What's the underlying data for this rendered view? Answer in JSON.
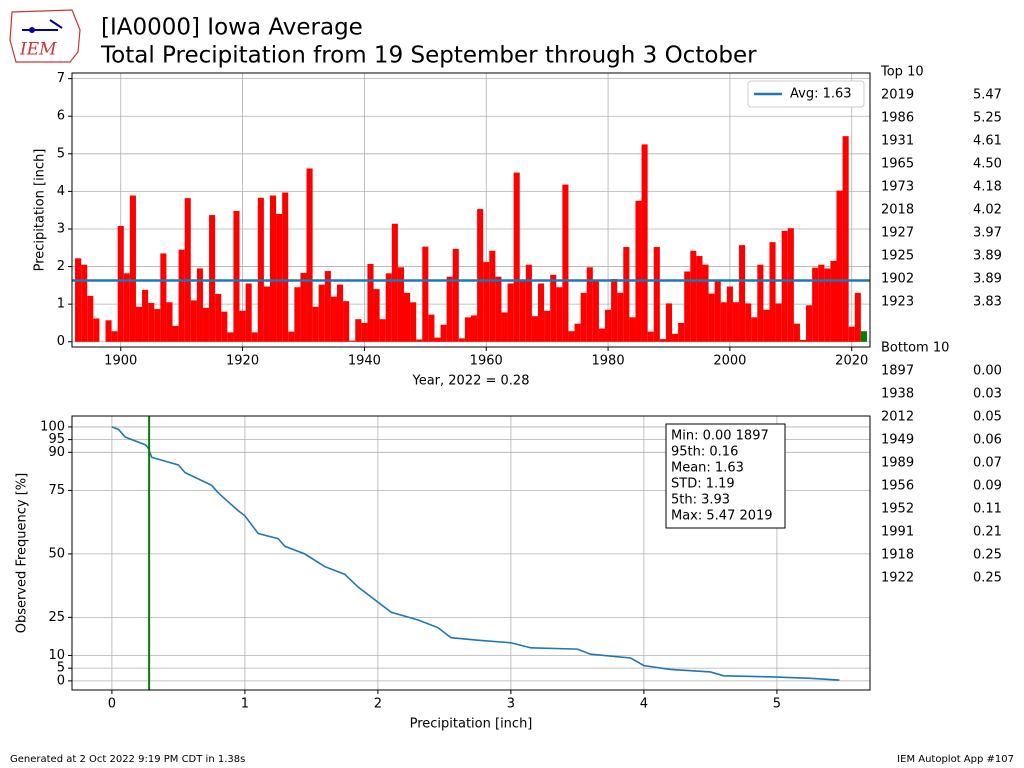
{
  "header": {
    "logo_text": "IEM",
    "title": "[IA0000] Iowa Average",
    "subtitle": "Total Precipitation from 19 September through 3 October"
  },
  "chart_data": [
    {
      "type": "bar",
      "ylabel": "Precipitation [inch]",
      "xlabel": "Year, 2022 = 0.28",
      "categories": [
        1893,
        1894,
        1895,
        1896,
        1897,
        1898,
        1899,
        1900,
        1901,
        1902,
        1903,
        1904,
        1905,
        1906,
        1907,
        1908,
        1909,
        1910,
        1911,
        1912,
        1913,
        1914,
        1915,
        1916,
        1917,
        1918,
        1919,
        1920,
        1921,
        1922,
        1923,
        1924,
        1925,
        1926,
        1927,
        1928,
        1929,
        1930,
        1931,
        1932,
        1933,
        1934,
        1935,
        1936,
        1937,
        1938,
        1939,
        1940,
        1941,
        1942,
        1943,
        1944,
        1945,
        1946,
        1947,
        1948,
        1949,
        1950,
        1951,
        1952,
        1953,
        1954,
        1955,
        1956,
        1957,
        1958,
        1959,
        1960,
        1961,
        1962,
        1963,
        1964,
        1965,
        1966,
        1967,
        1968,
        1969,
        1970,
        1971,
        1972,
        1973,
        1974,
        1975,
        1976,
        1977,
        1978,
        1979,
        1980,
        1981,
        1982,
        1983,
        1984,
        1985,
        1986,
        1987,
        1988,
        1989,
        1990,
        1991,
        1992,
        1993,
        1994,
        1995,
        1996,
        1997,
        1998,
        1999,
        2000,
        2001,
        2002,
        2003,
        2004,
        2005,
        2006,
        2007,
        2008,
        2009,
        2010,
        2011,
        2012,
        2013,
        2014,
        2015,
        2016,
        2017,
        2018,
        2019,
        2020,
        2021,
        2022
      ],
      "values": [
        2.22,
        2.05,
        1.22,
        0.62,
        0.0,
        0.57,
        0.28,
        3.08,
        1.82,
        3.89,
        0.93,
        1.38,
        1.03,
        0.87,
        2.35,
        1.05,
        0.42,
        2.45,
        3.82,
        1.1,
        1.95,
        0.9,
        3.37,
        1.27,
        0.8,
        0.25,
        3.48,
        0.82,
        1.55,
        0.25,
        3.83,
        1.47,
        3.89,
        3.4,
        3.97,
        0.27,
        1.45,
        1.83,
        4.61,
        0.93,
        1.52,
        1.88,
        1.2,
        1.52,
        1.08,
        0.03,
        0.6,
        0.5,
        2.07,
        1.4,
        0.6,
        1.82,
        3.14,
        1.98,
        1.3,
        1.05,
        0.06,
        2.53,
        0.72,
        0.11,
        0.45,
        1.73,
        2.47,
        0.09,
        0.65,
        0.7,
        3.53,
        2.12,
        2.42,
        1.73,
        0.78,
        1.55,
        4.5,
        1.62,
        2.05,
        0.68,
        1.55,
        0.82,
        1.78,
        1.45,
        4.18,
        0.28,
        0.48,
        1.3,
        1.98,
        1.65,
        0.35,
        0.85,
        1.67,
        1.3,
        2.52,
        0.65,
        3.75,
        5.25,
        0.27,
        2.52,
        0.07,
        1.02,
        0.21,
        0.5,
        1.87,
        2.42,
        2.28,
        2.05,
        1.28,
        1.65,
        1.05,
        1.47,
        1.05,
        2.57,
        1.02,
        0.65,
        2.05,
        0.85,
        2.65,
        1.02,
        2.95,
        3.02,
        0.48,
        0.05,
        0.97,
        1.97,
        2.05,
        1.95,
        2.15,
        4.02,
        5.47,
        0.4,
        1.3,
        0.28
      ],
      "color": "#ff0000",
      "last_color": "#008000",
      "avg": 1.63,
      "avg_color": "#1f77b4",
      "legend_label": "Avg: 1.63",
      "legend": "upper right",
      "xlim": [
        1892,
        2023
      ],
      "xticks": [
        1900,
        1920,
        1940,
        1960,
        1980,
        2000,
        2020
      ],
      "ylim": [
        -0.14,
        7.15
      ],
      "yticks": [
        0,
        1,
        2,
        3,
        4,
        5,
        6,
        7
      ],
      "grid": true
    },
    {
      "type": "line",
      "xlabel": "Precipitation [inch]",
      "ylabel": "Observed Frequency [%]",
      "x": [
        0,
        0.05,
        0.1,
        0.25,
        0.27,
        0.3,
        0.5,
        0.55,
        0.75,
        0.8,
        0.95,
        1.0,
        1.1,
        1.25,
        1.3,
        1.45,
        1.6,
        1.75,
        1.85,
        2.0,
        2.1,
        2.3,
        2.45,
        2.55,
        2.75,
        3.0,
        3.15,
        3.5,
        3.6,
        3.9,
        4.0,
        4.2,
        4.5,
        4.6,
        5.0,
        5.25,
        5.47
      ],
      "values": [
        100,
        99,
        96,
        93,
        92,
        88,
        85,
        82,
        77,
        74,
        67,
        65,
        58,
        56,
        53,
        50,
        45,
        42,
        37,
        31,
        27,
        24,
        21,
        17,
        16,
        15,
        13,
        12.5,
        10.5,
        9,
        6,
        4.5,
        3.5,
        2,
        1.5,
        1,
        0.3
      ],
      "color": "#1f77b4",
      "marker_x": 0.28,
      "marker_color": "#008000",
      "xlim": [
        -0.3,
        5.7
      ],
      "xticks": [
        0,
        1,
        2,
        3,
        4,
        5
      ],
      "ylim": [
        -3.6,
        104.3
      ],
      "yticks": [
        0,
        5,
        10,
        25,
        50,
        75,
        90,
        95,
        100
      ],
      "grid": true,
      "stats": [
        "Min: 0.00 1897",
        "95th: 0.16",
        "Mean: 1.63",
        "STD: 1.19",
        "5th: 3.93",
        "Max: 5.47 2019"
      ]
    }
  ],
  "top10": {
    "title": "Top 10",
    "rows": [
      [
        "2019",
        "5.47"
      ],
      [
        "1986",
        "5.25"
      ],
      [
        "1931",
        "4.61"
      ],
      [
        "1965",
        "4.50"
      ],
      [
        "1973",
        "4.18"
      ],
      [
        "2018",
        "4.02"
      ],
      [
        "1927",
        "3.97"
      ],
      [
        "1925",
        "3.89"
      ],
      [
        "1902",
        "3.89"
      ],
      [
        "1923",
        "3.83"
      ]
    ]
  },
  "bottom10": {
    "title": "Bottom 10",
    "rows": [
      [
        "1897",
        "0.00"
      ],
      [
        "1938",
        "0.03"
      ],
      [
        "2012",
        "0.05"
      ],
      [
        "1949",
        "0.06"
      ],
      [
        "1989",
        "0.07"
      ],
      [
        "1956",
        "0.09"
      ],
      [
        "1952",
        "0.11"
      ],
      [
        "1991",
        "0.21"
      ],
      [
        "1918",
        "0.25"
      ],
      [
        "1922",
        "0.25"
      ]
    ]
  },
  "footer": {
    "left": "Generated at 2 Oct 2022 9:19 PM CDT in 1.38s",
    "right": "IEM Autoplot App #107"
  }
}
